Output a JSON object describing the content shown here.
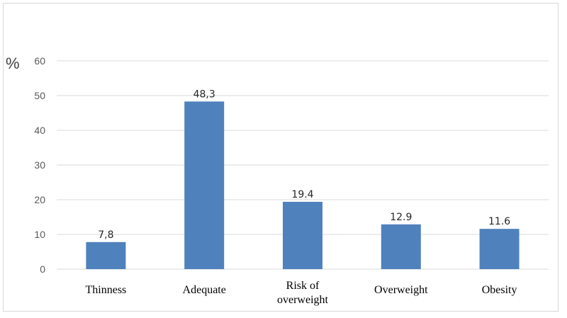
{
  "chart_data": {
    "type": "bar",
    "title": "",
    "xlabel": "",
    "ylabel": "%",
    "ylim": [
      0,
      60
    ],
    "yticks": [
      "0",
      "10",
      "20",
      "30",
      "40",
      "50",
      "60"
    ],
    "categories": [
      [
        "Thinness"
      ],
      [
        "Adequate"
      ],
      [
        "Risk of",
        "overweight"
      ],
      [
        "Overweight"
      ],
      [
        "Obesity"
      ]
    ],
    "values": [
      7.8,
      48.3,
      19.4,
      12.9,
      11.6
    ],
    "data_labels": [
      "7,8",
      "48,3",
      "19.4",
      "12.9",
      "11.6"
    ],
    "grid": true,
    "legend": "none",
    "bar_color": "#4f81bd",
    "grid_color": "#d9d9d9"
  }
}
